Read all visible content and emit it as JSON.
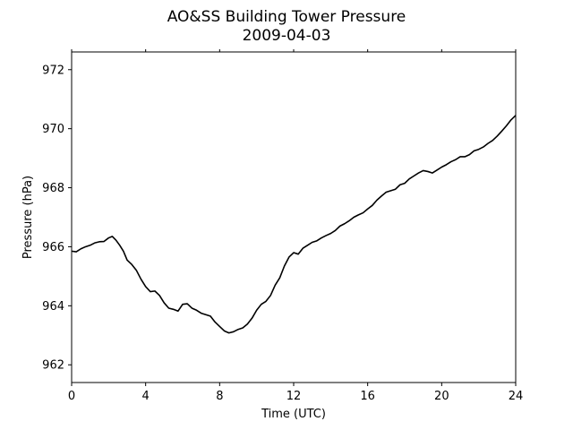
{
  "chart_data": {
    "type": "line",
    "title": "AO&SS Building Tower Pressure",
    "subtitle": "2009-04-03",
    "xlabel": "Time (UTC)",
    "ylabel": "Pressure (hPa)",
    "xlim": [
      0,
      24
    ],
    "ylim": [
      961.4,
      972.6
    ],
    "x_ticks": [
      0,
      4,
      8,
      12,
      16,
      20,
      24
    ],
    "y_ticks": [
      962,
      964,
      966,
      968,
      970,
      972
    ],
    "grid": false,
    "line_color": "#000000",
    "series": [
      {
        "x": [
          0,
          0.25,
          0.5,
          0.75,
          1.0,
          1.25,
          1.5,
          1.75,
          2.0,
          2.2,
          2.4,
          2.6,
          2.8,
          3.0,
          3.25,
          3.5,
          3.75,
          4.0,
          4.25,
          4.5,
          4.75,
          5.0,
          5.25,
          5.5,
          5.75,
          6.0,
          6.25,
          6.5,
          6.75,
          7.0,
          7.25,
          7.5,
          7.75,
          8.0,
          8.25,
          8.5,
          8.75,
          9.0,
          9.25,
          9.5,
          9.75,
          10.0,
          10.25,
          10.5,
          10.75,
          11.0,
          11.25,
          11.5,
          11.75,
          12.0,
          12.25,
          12.5,
          12.75,
          13.0,
          13.25,
          13.5,
          13.75,
          14.0,
          14.25,
          14.5,
          14.75,
          15.0,
          15.25,
          15.5,
          15.75,
          16.0,
          16.25,
          16.5,
          16.75,
          17.0,
          17.25,
          17.5,
          17.75,
          18.0,
          18.25,
          18.5,
          18.75,
          19.0,
          19.25,
          19.5,
          19.75,
          20.0,
          20.25,
          20.5,
          20.75,
          21.0,
          21.25,
          21.5,
          21.75,
          22.0,
          22.25,
          22.5,
          22.75,
          23.0,
          23.25,
          23.5,
          23.75,
          24.0
        ],
        "values": [
          965.85,
          965.83,
          965.93,
          966.0,
          966.05,
          966.13,
          966.17,
          966.18,
          966.3,
          966.35,
          966.22,
          966.05,
          965.85,
          965.55,
          965.4,
          965.2,
          964.9,
          964.65,
          964.48,
          964.5,
          964.35,
          964.1,
          963.92,
          963.88,
          963.82,
          964.05,
          964.07,
          963.92,
          963.85,
          963.75,
          963.7,
          963.65,
          963.45,
          963.3,
          963.15,
          963.08,
          963.12,
          963.2,
          963.25,
          963.38,
          963.58,
          963.85,
          964.05,
          964.15,
          964.35,
          964.7,
          964.95,
          965.35,
          965.65,
          965.8,
          965.75,
          965.95,
          966.05,
          966.15,
          966.2,
          966.3,
          966.38,
          966.45,
          966.55,
          966.7,
          966.78,
          966.88,
          967.0,
          967.08,
          967.15,
          967.28,
          967.4,
          967.58,
          967.72,
          967.85,
          967.9,
          967.95,
          968.1,
          968.15,
          968.3,
          968.4,
          968.5,
          968.58,
          968.55,
          968.5,
          968.6,
          968.7,
          968.78,
          968.88,
          968.95,
          969.05,
          969.05,
          969.12,
          969.25,
          969.3,
          969.38,
          969.5,
          969.6,
          969.75,
          969.92,
          970.1,
          970.3,
          970.45
        ]
      }
    ]
  }
}
